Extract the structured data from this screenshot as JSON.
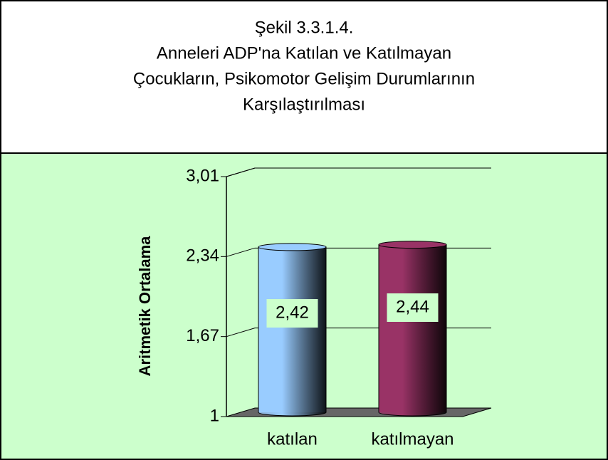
{
  "chart_data": {
    "type": "bar3d",
    "title": [
      "Şekil 3.3.1.4.",
      "Anneleri ADP'na Katılan ve Katılmayan",
      "Çocukların, Psikomotor Gelişim Durumlarının",
      "Karşılaştırılması"
    ],
    "y_label": "Aritmetik Ortalama",
    "categories": [
      "katılan",
      "katılmayan"
    ],
    "values": [
      2.42,
      2.44
    ],
    "value_labels": [
      "2,42",
      "2,44"
    ],
    "colors": [
      "#99ccff",
      "#993366"
    ],
    "ylim": [
      1,
      3.01
    ],
    "yticks": [
      1,
      {
        "value": 1.67,
        "label": "1,67"
      },
      {
        "value": 2.34,
        "label": "2,34"
      },
      {
        "value": 3.01,
        "label": "3,01"
      }
    ],
    "grid": true
  }
}
